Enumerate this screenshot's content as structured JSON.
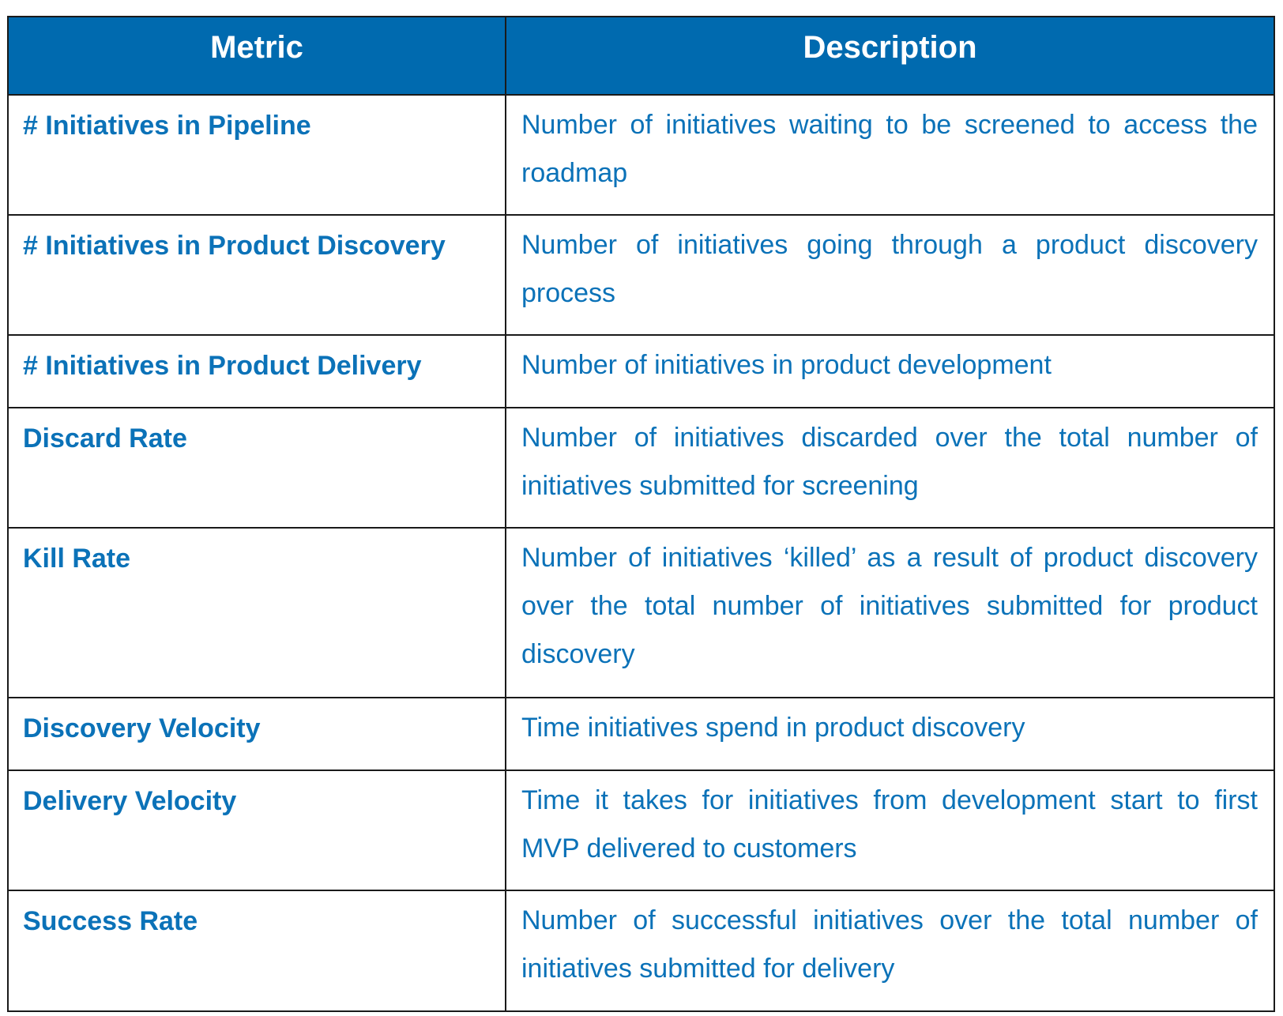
{
  "table": {
    "headers": {
      "metric": "Metric",
      "description": "Description"
    },
    "rows": [
      {
        "metric": "# Initiatives in Pipeline",
        "description": "Number of initiatives waiting to be screened to access the roadmap"
      },
      {
        "metric": "# Initiatives in Product Discovery",
        "description": "Number of initiatives going through a product discovery process"
      },
      {
        "metric": "# Initiatives in Product Delivery",
        "description": "Number of initiatives in product development"
      },
      {
        "metric": "Discard Rate",
        "description": "Number of initiatives discarded over the total number of initiatives submitted for screening"
      },
      {
        "metric": "Kill Rate",
        "description": "Number of initiatives ‘killed’ as a result of product discovery over the total number of initiatives submitted for product discovery"
      },
      {
        "metric": "Discovery Velocity",
        "description": "Time initiatives spend in product discovery"
      },
      {
        "metric": "Delivery Velocity",
        "description": "Time it takes for initiatives from development start to first MVP delivered to customers"
      },
      {
        "metric": "Success Rate",
        "description": "Number of successful initiatives over the total number of initiatives submitted for delivery"
      }
    ]
  },
  "colors": {
    "header_background": "#006aaf",
    "header_text": "#ffffff",
    "body_text": "#0b72b8",
    "border": "#1a1a1a"
  }
}
